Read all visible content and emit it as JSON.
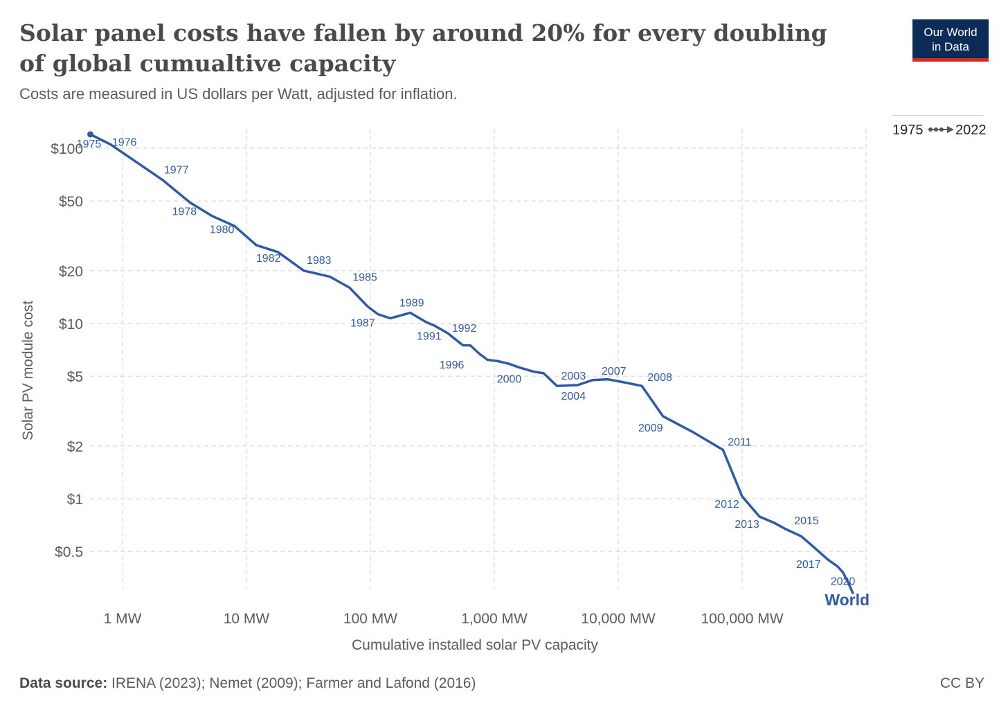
{
  "header": {
    "title": "Solar panel costs have fallen by around 20% for every doubling of global cumualtive capacity",
    "subtitle": "Costs are measured in US dollars per Watt, adjusted for inflation.",
    "logo_line1": "Our World",
    "logo_line2": "in Data"
  },
  "timeline": {
    "start": "1975",
    "end": "2022"
  },
  "footer": {
    "source_label": "Data source:",
    "source_text": " IRENA (2023); Nemet (2009); Farmer and Lafond (2016)",
    "license": "CC BY"
  },
  "colors": {
    "line": "#2f5aa5",
    "grid": "#d0d0d0",
    "text": "#5b5b5b",
    "logo_bg": "#0d2b57",
    "logo_accent": "#d42b21"
  },
  "chart_data": {
    "type": "line",
    "xscale": "log",
    "yscale": "log",
    "xlabel": "Cumulative installed solar PV capacity",
    "ylabel": "Solar PV module cost",
    "xlim": [
      0.55,
      800000
    ],
    "ylim": [
      0.28,
      130
    ],
    "xticks": [
      {
        "value": 1,
        "label": "1 MW"
      },
      {
        "value": 10,
        "label": "10 MW"
      },
      {
        "value": 100,
        "label": "100 MW"
      },
      {
        "value": 1000,
        "label": "1,000 MW"
      },
      {
        "value": 10000,
        "label": "10,000 MW"
      },
      {
        "value": 100000,
        "label": "100,000 MW"
      },
      {
        "value": 1000000,
        "label": ""
      }
    ],
    "yticks": [
      {
        "value": 0.5,
        "label": "$0.5"
      },
      {
        "value": 1,
        "label": "$1"
      },
      {
        "value": 2,
        "label": "$2"
      },
      {
        "value": 5,
        "label": "$5"
      },
      {
        "value": 10,
        "label": "$10"
      },
      {
        "value": 20,
        "label": "$20"
      },
      {
        "value": 50,
        "label": "$50"
      },
      {
        "value": 100,
        "label": "$100"
      }
    ],
    "grid": true,
    "series": [
      {
        "name": "World",
        "points": [
          {
            "year": 1975,
            "x": 0.55,
            "y": 120,
            "label": "1975"
          },
          {
            "year": 1976,
            "x": 0.8,
            "y": 105,
            "label": "1976"
          },
          {
            "year": 1977,
            "x": 2.1,
            "y": 66,
            "label": "1977"
          },
          {
            "year": 1978,
            "x": 3.5,
            "y": 49,
            "label": "1978"
          },
          {
            "year": 1979,
            "x": 5.3,
            "y": 41,
            "label": ""
          },
          {
            "year": 1980,
            "x": 8,
            "y": 36,
            "label": "1980"
          },
          {
            "year": 1981,
            "x": 12,
            "y": 28,
            "label": ""
          },
          {
            "year": 1982,
            "x": 18,
            "y": 25.5,
            "label": "1982"
          },
          {
            "year": 1983,
            "x": 29,
            "y": 20,
            "label": "1983"
          },
          {
            "year": 1984,
            "x": 47,
            "y": 18.5,
            "label": ""
          },
          {
            "year": 1985,
            "x": 68,
            "y": 16,
            "label": "1985"
          },
          {
            "year": 1986,
            "x": 95,
            "y": 12.5,
            "label": ""
          },
          {
            "year": 1987,
            "x": 115,
            "y": 11.3,
            "label": "1987"
          },
          {
            "year": 1988,
            "x": 145,
            "y": 10.7,
            "label": ""
          },
          {
            "year": 1989,
            "x": 210,
            "y": 11.5,
            "label": "1989"
          },
          {
            "year": 1990,
            "x": 280,
            "y": 10.2,
            "label": ""
          },
          {
            "year": 1991,
            "x": 330,
            "y": 9.7,
            "label": "1991"
          },
          {
            "year": 1992,
            "x": 420,
            "y": 8.8,
            "label": "1992"
          },
          {
            "year": 1993,
            "x": 520,
            "y": 7.8,
            "label": ""
          },
          {
            "year": 1994,
            "x": 560,
            "y": 7.5,
            "label": ""
          },
          {
            "year": 1995,
            "x": 640,
            "y": 7.5,
            "label": ""
          },
          {
            "year": 1996,
            "x": 760,
            "y": 6.7,
            "label": "1996"
          },
          {
            "year": 1997,
            "x": 880,
            "y": 6.2,
            "label": ""
          },
          {
            "year": 1998,
            "x": 1060,
            "y": 6.1,
            "label": ""
          },
          {
            "year": 1999,
            "x": 1300,
            "y": 5.9,
            "label": ""
          },
          {
            "year": 2000,
            "x": 1600,
            "y": 5.6,
            "label": "2000"
          },
          {
            "year": 2001,
            "x": 2100,
            "y": 5.3,
            "label": ""
          },
          {
            "year": 2002,
            "x": 2500,
            "y": 5.2,
            "label": ""
          },
          {
            "year": 2003,
            "x": 3200,
            "y": 4.4,
            "label": "2003"
          },
          {
            "year": 2004,
            "x": 4700,
            "y": 4.45,
            "label": "2004"
          },
          {
            "year": 2005,
            "x": 6200,
            "y": 4.75,
            "label": ""
          },
          {
            "year": 2006,
            "x": 8200,
            "y": 4.8,
            "label": ""
          },
          {
            "year": 2007,
            "x": 10500,
            "y": 4.65,
            "label": "2007"
          },
          {
            "year": 2008,
            "x": 15500,
            "y": 4.4,
            "label": "2008"
          },
          {
            "year": 2009,
            "x": 23000,
            "y": 2.95,
            "label": "2009"
          },
          {
            "year": 2010,
            "x": 40000,
            "y": 2.4,
            "label": ""
          },
          {
            "year": 2011,
            "x": 70000,
            "y": 1.9,
            "label": "2011"
          },
          {
            "year": 2012,
            "x": 100000,
            "y": 1.03,
            "label": "2012"
          },
          {
            "year": 2013,
            "x": 138000,
            "y": 0.79,
            "label": "2013"
          },
          {
            "year": 2014,
            "x": 180000,
            "y": 0.73,
            "label": ""
          },
          {
            "year": 2015,
            "x": 225000,
            "y": 0.67,
            "label": "2015"
          },
          {
            "year": 2016,
            "x": 300000,
            "y": 0.61,
            "label": ""
          },
          {
            "year": 2017,
            "x": 390000,
            "y": 0.52,
            "label": "2017"
          },
          {
            "year": 2018,
            "x": 490000,
            "y": 0.45,
            "label": ""
          },
          {
            "year": 2019,
            "x": 590000,
            "y": 0.41,
            "label": ""
          },
          {
            "year": 2020,
            "x": 650000,
            "y": 0.38,
            "label": "2020"
          },
          {
            "year": 2021,
            "x": 720000,
            "y": 0.33,
            "label": ""
          },
          {
            "year": 2022,
            "x": 780000,
            "y": 0.29,
            "label": ""
          }
        ]
      }
    ]
  }
}
